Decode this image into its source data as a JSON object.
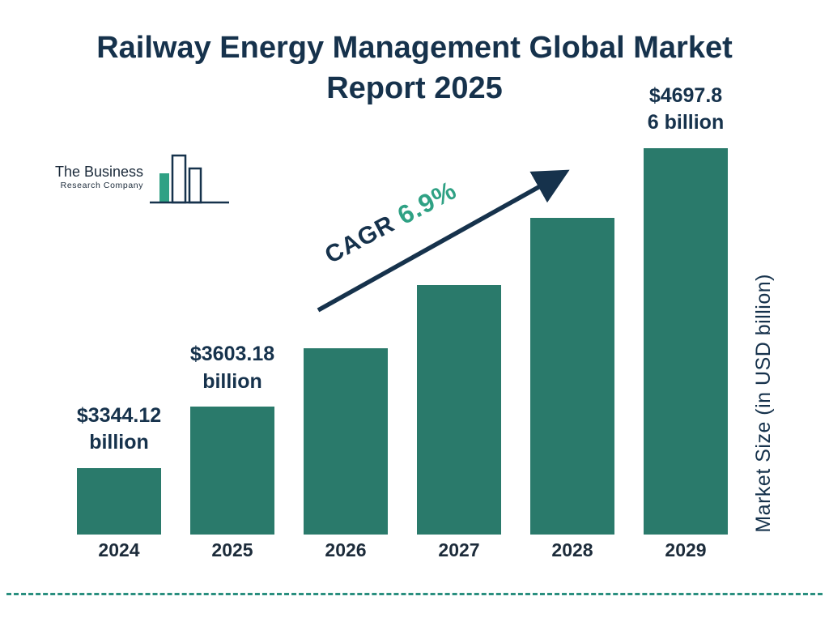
{
  "title": "Railway Energy Management Global Market Report 2025",
  "logo": {
    "line1": "The Business",
    "line2": "Research Company"
  },
  "cagr": {
    "label": "CAGR",
    "value": "6.9%"
  },
  "colors": {
    "bar": "#2a7a6b",
    "title": "#16324c",
    "accent_green": "#2fa184",
    "dashed_line": "#2a8f7f"
  },
  "chart_data": {
    "type": "bar",
    "title": "Railway Energy Management Global Market Report 2025",
    "categories": [
      "2024",
      "2025",
      "2026",
      "2027",
      "2028",
      "2029"
    ],
    "values": [
      3344.12,
      3603.18,
      3851.8,
      4117.6,
      4401.7,
      4697.86
    ],
    "labeled_values": {
      "2024": 3344.12,
      "2025": 3603.18,
      "2029": 4697.86
    },
    "data_labels": [
      {
        "bar": 0,
        "lines": [
          "$3344.12",
          "billion"
        ]
      },
      {
        "bar": 1,
        "lines": [
          "$3603.18",
          "billion"
        ]
      },
      {
        "bar": 5,
        "lines": [
          "$4697.8",
          "6 billion"
        ]
      }
    ],
    "cagr_percent": 6.9,
    "xlabel": "",
    "ylabel": "Market Size (in USD billion)",
    "grid": false,
    "legend": false
  }
}
